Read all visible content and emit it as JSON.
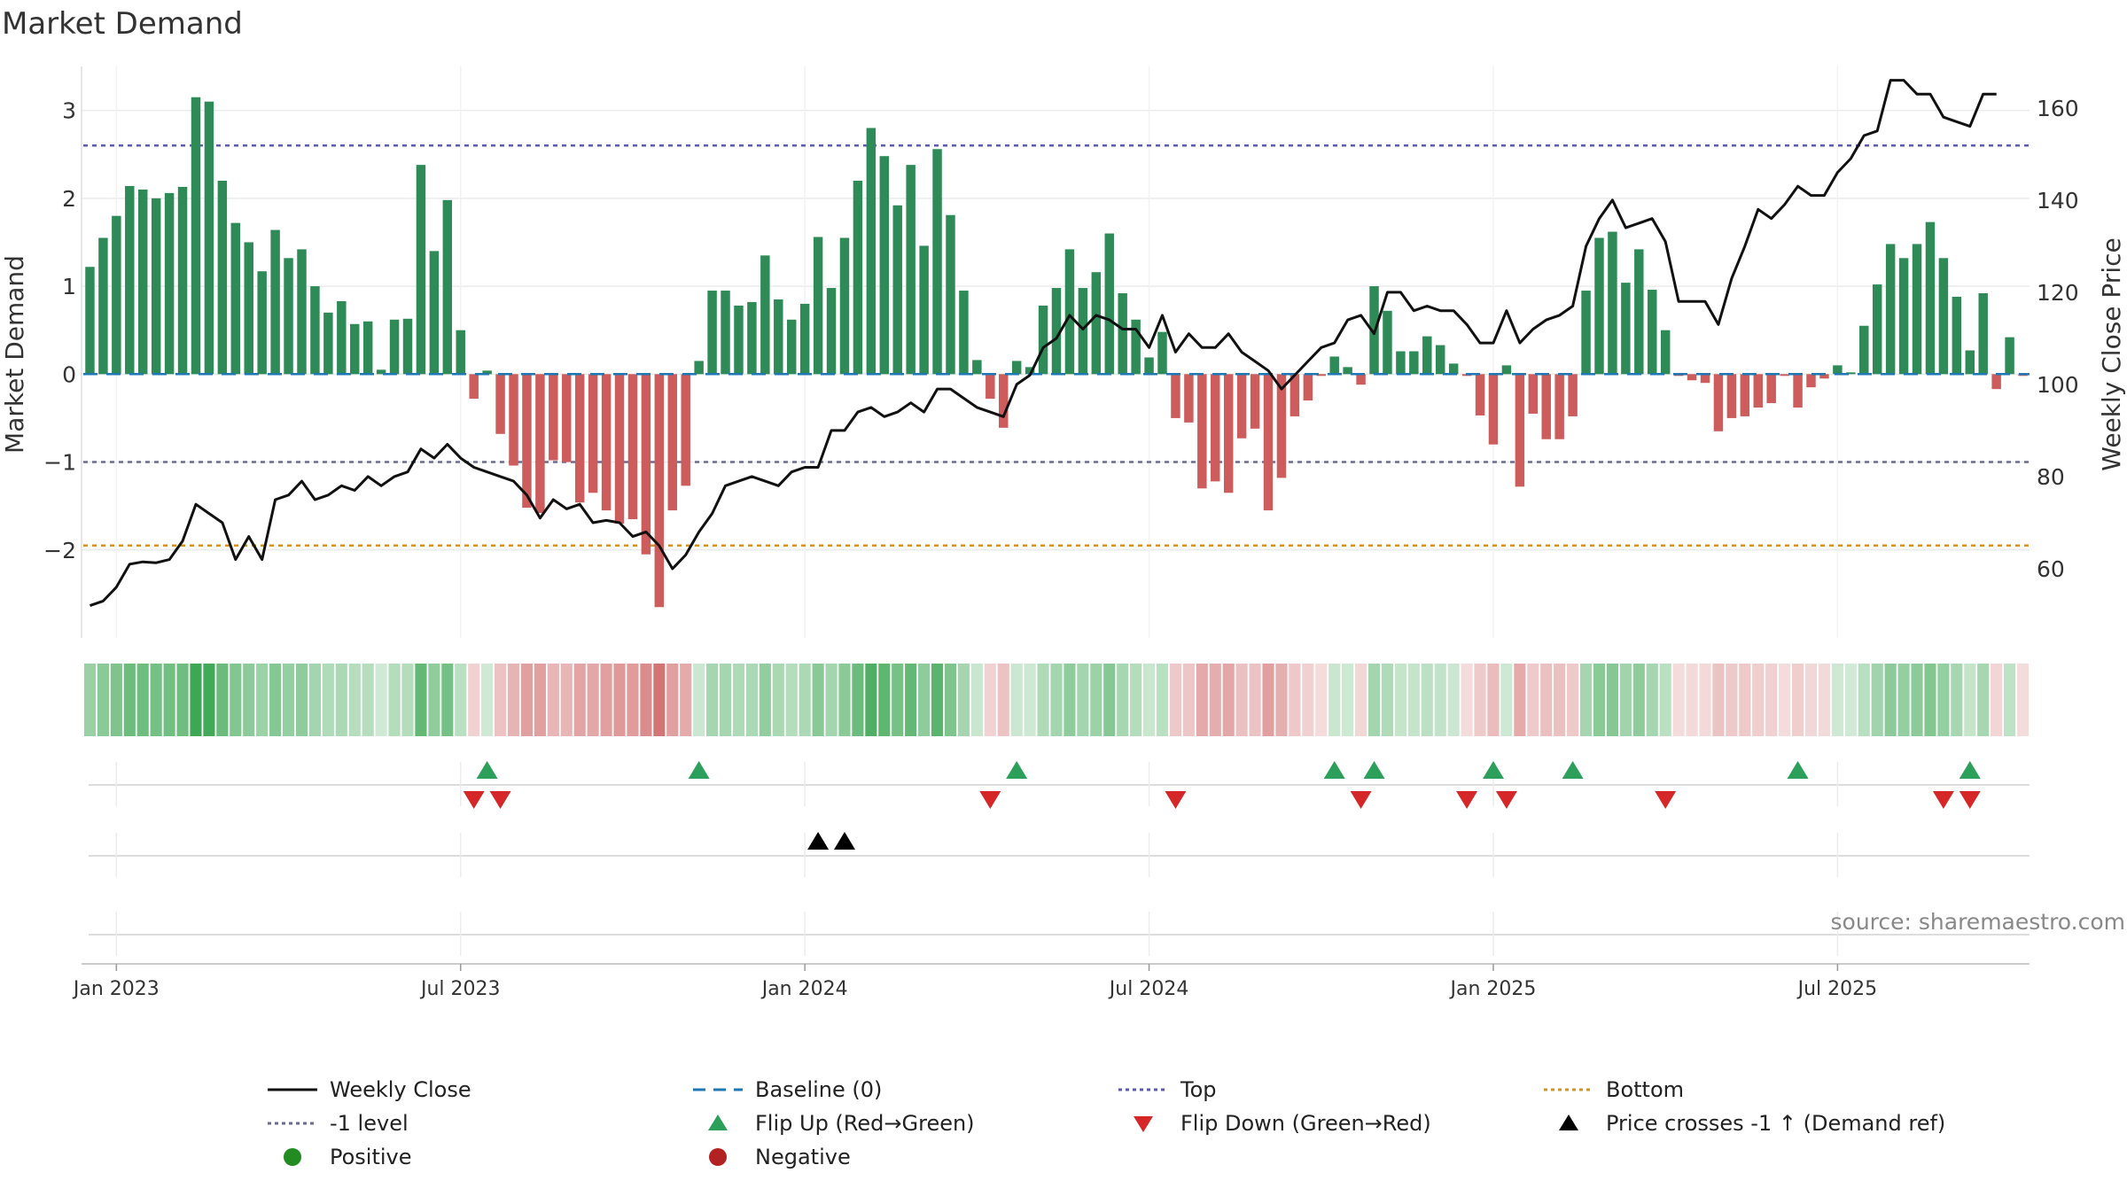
{
  "chart_data": {
    "type": "bar",
    "title": "Market Demand",
    "ylabel": "Market Demand",
    "y2label": "Weekly Close Price",
    "ylim": [
      -3.0,
      3.5
    ],
    "y2lim": [
      45,
      169
    ],
    "y_ticks": [
      3,
      2,
      1,
      0,
      -1,
      -2
    ],
    "y_tick_labels": [
      "3",
      "2",
      "1",
      "0",
      "−1",
      "−2"
    ],
    "y2_ticks": [
      160,
      140,
      120,
      100,
      80,
      60
    ],
    "y2_tick_labels": [
      "160",
      "140",
      "120",
      "100",
      "80",
      "60"
    ],
    "x_ticks": [
      {
        "label": "Jan 2023",
        "week": 2
      },
      {
        "label": "Jul 2023",
        "week": 28
      },
      {
        "label": "Jan 2024",
        "week": 54
      },
      {
        "label": "Jul 2024",
        "week": 80
      },
      {
        "label": "Jan 2025",
        "week": 106
      },
      {
        "label": "Jul 2025",
        "week": 132
      }
    ],
    "top_level": 2.6,
    "bottom_level": -1.95,
    "minus_one_level": -1.0,
    "colors": {
      "positive": "#2e8b57",
      "negative": "#cd5c5c",
      "price": "#111111",
      "baseline": "#1f77b4",
      "top": "#5b5bb0",
      "bottom": "#d4922a",
      "minus_one": "#6b6b8a",
      "flip_up": "#2ca05a",
      "flip_down": "#d62728",
      "cross": "#000000",
      "positive_dot": "#228b22",
      "negative_dot": "#b22222"
    },
    "series": [
      {
        "name": "Market Demand",
        "values": [
          1.22,
          1.55,
          1.8,
          2.14,
          2.1,
          2.0,
          2.06,
          2.13,
          3.15,
          3.1,
          2.2,
          1.72,
          1.5,
          1.17,
          1.64,
          1.32,
          1.42,
          1.0,
          0.7,
          0.83,
          0.57,
          0.6,
          0.05,
          0.62,
          0.63,
          2.38,
          1.4,
          1.98,
          0.5,
          -0.28,
          0.04,
          -0.68,
          -1.04,
          -1.52,
          -1.58,
          -0.98,
          -1.0,
          -1.46,
          -1.35,
          -1.55,
          -1.7,
          -1.65,
          -2.05,
          -2.65,
          -1.55,
          -1.27,
          0.15,
          0.95,
          0.95,
          0.78,
          0.82,
          1.35,
          0.85,
          0.62,
          0.8,
          1.56,
          0.98,
          1.55,
          2.2,
          2.8,
          2.48,
          1.92,
          2.38,
          1.46,
          2.56,
          1.81,
          0.95,
          0.16,
          -0.28,
          -0.61,
          0.15,
          0.08,
          0.78,
          0.98,
          1.42,
          0.98,
          1.16,
          1.6,
          0.92,
          0.62,
          0.19,
          0.48,
          -0.5,
          -0.55,
          -1.3,
          -1.22,
          -1.35,
          -0.73,
          -0.62,
          -1.55,
          -1.18,
          -0.48,
          -0.3,
          -0.02,
          0.2,
          0.08,
          -0.12,
          1.0,
          0.72,
          0.26,
          0.26,
          0.43,
          0.33,
          0.12,
          -0.02,
          -0.47,
          -0.8,
          0.1,
          -1.28,
          -0.45,
          -0.74,
          -0.74,
          -0.48,
          0.95,
          1.55,
          1.62,
          1.04,
          1.42,
          0.96,
          0.5,
          -0.02,
          -0.07,
          -0.1,
          -0.65,
          -0.5,
          -0.48,
          -0.38,
          -0.33,
          -0.02,
          -0.38,
          -0.15,
          -0.05,
          0.1,
          0.02,
          0.55,
          1.02,
          1.48,
          1.32,
          1.48,
          1.73,
          1.32,
          0.88,
          0.27,
          0.92,
          -0.17,
          0.42,
          -0.02
        ]
      },
      {
        "name": "Weekly Close",
        "axis": "right",
        "values": [
          52,
          53,
          56,
          61,
          61.5,
          61.3,
          62,
          66,
          74,
          72,
          70,
          62,
          67,
          62,
          75,
          76,
          79,
          75,
          76,
          78,
          77,
          80,
          78,
          80,
          81,
          86,
          84,
          87,
          84,
          82,
          81,
          80,
          79,
          76,
          71,
          75,
          73,
          74,
          70,
          70.5,
          70,
          67,
          68,
          65,
          60,
          63,
          68,
          72,
          78,
          79,
          80,
          79,
          78,
          81,
          82,
          82,
          90,
          90,
          94,
          95,
          93,
          94,
          96,
          94,
          99,
          99,
          97,
          95,
          94,
          93,
          100,
          102,
          108,
          110,
          115,
          112,
          115,
          114,
          112,
          112,
          108,
          115,
          107,
          111,
          108,
          108,
          111,
          107,
          105,
          103,
          99,
          102,
          105,
          108,
          109,
          114,
          115,
          111,
          120,
          120,
          116,
          117,
          116,
          116,
          113,
          109,
          109,
          116,
          109,
          112,
          114,
          115,
          117,
          130,
          136,
          140,
          134,
          135,
          136,
          131,
          118,
          118,
          118,
          113,
          123,
          130,
          138,
          136,
          139,
          143,
          141,
          141,
          146,
          149,
          154,
          155,
          166,
          166,
          163,
          163,
          158,
          157,
          156,
          163,
          163
        ]
      }
    ],
    "flip_up_weeks": [
      30,
      46,
      70,
      94,
      97,
      106,
      112,
      129,
      142
    ],
    "flip_down_weeks": [
      29,
      31,
      68,
      82,
      96,
      104,
      107,
      119,
      140,
      142
    ],
    "cross_weeks": [
      55,
      57
    ],
    "source_text": "source: sharemaestro.com",
    "legend": [
      {
        "label": "Weekly Close",
        "symbol": "line-solid",
        "color": "#111111"
      },
      {
        "label": "Baseline (0)",
        "symbol": "line-dashed",
        "color": "#1f77b4"
      },
      {
        "label": "Top",
        "symbol": "line-dotted",
        "color": "#5b5bb0"
      },
      {
        "label": "Bottom",
        "symbol": "line-dotted",
        "color": "#d4922a"
      },
      {
        "label": "-1 level",
        "symbol": "line-dotted",
        "color": "#6b6b8a"
      },
      {
        "label": "Flip Up (Red→Green)",
        "symbol": "tri-up",
        "color": "#2ca05a"
      },
      {
        "label": "Flip Down (Green→Red)",
        "symbol": "tri-down",
        "color": "#d62728"
      },
      {
        "label": "Price crosses -1 ↑ (Demand ref)",
        "symbol": "tri-up",
        "color": "#000000"
      },
      {
        "label": "Positive",
        "symbol": "dot",
        "color": "#228b22"
      },
      {
        "label": "Negative",
        "symbol": "dot",
        "color": "#b22222"
      }
    ]
  }
}
